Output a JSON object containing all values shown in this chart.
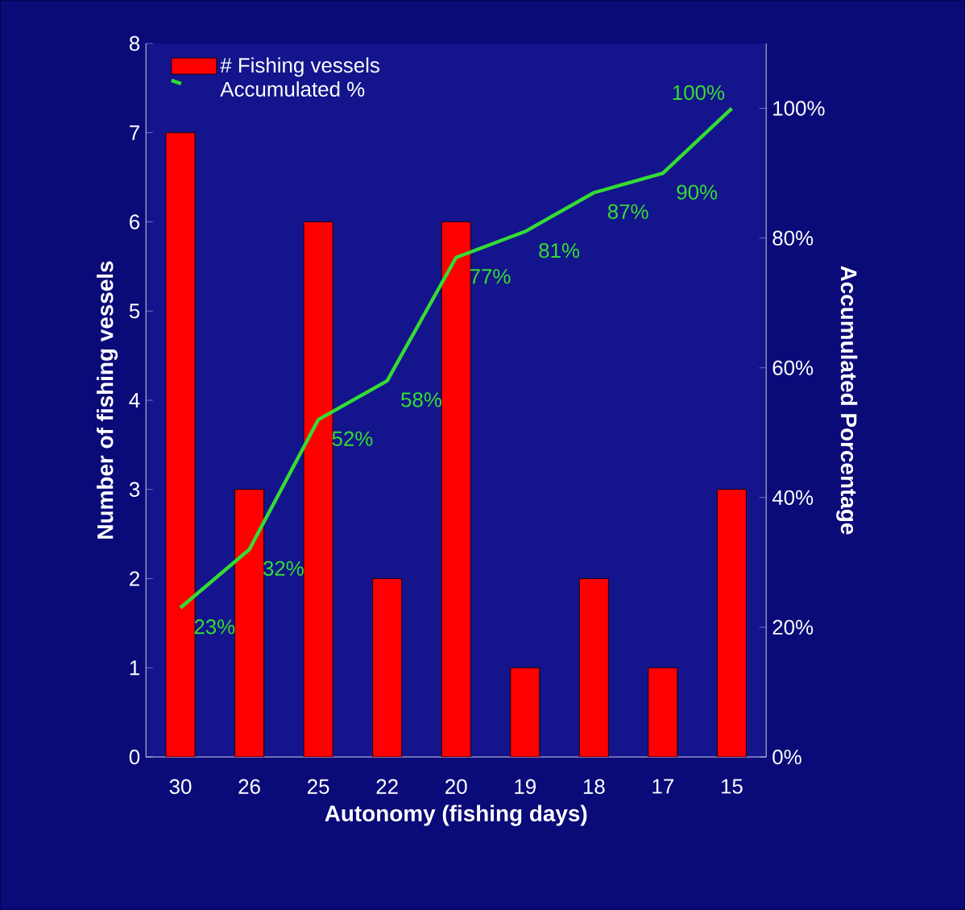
{
  "chart_data": {
    "type": "bar",
    "xlabel": "Autonomy (fishing days)",
    "ylabel": "Number of fishing vessels",
    "y2label": "Accumulated Porcentage",
    "categories": [
      "30",
      "26",
      "25",
      "22",
      "20",
      "19",
      "18",
      "17",
      "15"
    ],
    "series": [
      {
        "name": "# Fishing vessels",
        "color": "#ff0000",
        "values": [
          7,
          3,
          6,
          2,
          6,
          1,
          2,
          1,
          3
        ]
      },
      {
        "name": "Accumulated %",
        "type": "line",
        "axis": "y2",
        "color": "#33dd33",
        "values": [
          23,
          32,
          52,
          58,
          77,
          81,
          87,
          90,
          100
        ],
        "value_labels": [
          "23%",
          "32%",
          "52%",
          "58%",
          "77%",
          "81%",
          "87%",
          "90%",
          "100%"
        ]
      }
    ],
    "ylim": [
      0,
      8
    ],
    "yticks": [
      0,
      1,
      2,
      3,
      4,
      5,
      6,
      7,
      8
    ],
    "y2lim": [
      0,
      110
    ],
    "y2ticks": [
      {
        "value": 0,
        "label": "0%"
      },
      {
        "value": 20,
        "label": "20%"
      },
      {
        "value": 40,
        "label": "40%"
      },
      {
        "value": 60,
        "label": "60%"
      },
      {
        "value": 80,
        "label": "80%"
      },
      {
        "value": 100,
        "label": "100%"
      }
    ],
    "legend": "top left"
  }
}
